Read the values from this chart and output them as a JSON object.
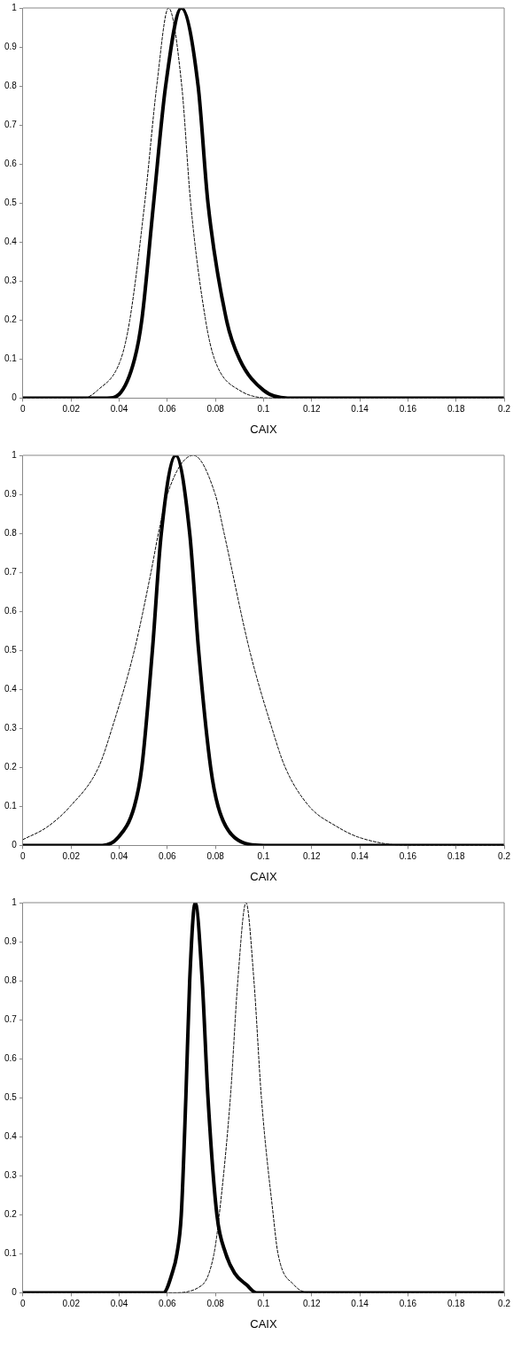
{
  "chart_data": [
    {
      "type": "line",
      "xlabel": "CAIX",
      "xlim": [
        0,
        0.2
      ],
      "xticks": [
        0,
        0.02,
        0.04,
        0.06,
        0.08,
        0.1,
        0.12,
        0.14,
        0.16,
        0.18,
        0.2
      ],
      "ylim": [
        0,
        1
      ],
      "yticks": [
        0,
        0.1,
        0.2,
        0.3,
        0.4,
        0.5,
        0.6,
        0.7,
        0.8,
        0.9,
        1
      ],
      "grid": false,
      "legend": false,
      "marker": "none",
      "series": [
        {
          "color": "#000000",
          "line_style": "solid",
          "x": [
            0,
            0.03,
            0.035,
            0.04,
            0.0464,
            0.0494,
            0.0543,
            0.0593,
            0.0658,
            0.0728,
            0.0769,
            0.0846,
            0.09,
            0.1,
            0.11,
            0.2
          ],
          "values": [
            0,
            0,
            0,
            0.01,
            0.1,
            0.2,
            0.5,
            0.8,
            1,
            0.8,
            0.5,
            0.2,
            0.1,
            0.02,
            0,
            0
          ]
        },
        {
          "color": "#000000",
          "line_style": "dashed",
          "x": [
            0,
            0.025,
            0.031,
            0.0407,
            0.0444,
            0.0506,
            0.0556,
            0.0605,
            0.066,
            0.0697,
            0.0759,
            0.0796,
            0.09,
            0.105,
            0.2
          ],
          "values": [
            0,
            0,
            0.02,
            0.1,
            0.2,
            0.5,
            0.8,
            1,
            0.8,
            0.5,
            0.2,
            0.1,
            0.02,
            0,
            0
          ]
        }
      ]
    },
    {
      "type": "line",
      "xlabel": "CAIX",
      "xlim": [
        0,
        0.2
      ],
      "xticks": [
        0,
        0.02,
        0.04,
        0.06,
        0.08,
        0.1,
        0.12,
        0.14,
        0.16,
        0.18,
        0.2
      ],
      "ylim": [
        0,
        1
      ],
      "yticks": [
        0,
        0.1,
        0.2,
        0.3,
        0.4,
        0.5,
        0.6,
        0.7,
        0.8,
        0.9,
        1
      ],
      "grid": false,
      "legend": false,
      "marker": "none",
      "series": [
        {
          "color": "#000000",
          "line_style": "solid",
          "x": [
            0,
            0.033,
            0.0395,
            0.0463,
            0.0494,
            0.0538,
            0.0575,
            0.0635,
            0.0693,
            0.073,
            0.078,
            0.0811,
            0.088,
            0.1,
            0.2
          ],
          "values": [
            0,
            0,
            0.02,
            0.1,
            0.2,
            0.5,
            0.8,
            1,
            0.8,
            0.5,
            0.2,
            0.1,
            0.02,
            0,
            0
          ]
        },
        {
          "color": "#000000",
          "line_style": "dashed",
          "x": [
            0,
            0.01,
            0.0196,
            0.0314,
            0.037,
            0.0463,
            0.0532,
            0.0563,
            0.06,
            0.0708,
            0.0799,
            0.0836,
            0.0942,
            0.1035,
            0.109,
            0.119,
            0.13,
            0.14,
            0.16,
            0.2
          ],
          "values": [
            0.015,
            0.047,
            0.1,
            0.2,
            0.3,
            0.5,
            0.7,
            0.8,
            0.9,
            1,
            0.9,
            0.8,
            0.5,
            0.3,
            0.2,
            0.1,
            0.05,
            0.02,
            0,
            0
          ]
        }
      ]
    },
    {
      "type": "line",
      "xlabel": "CAIX",
      "xlim": [
        0,
        0.2
      ],
      "xticks": [
        0,
        0.02,
        0.04,
        0.06,
        0.08,
        0.1,
        0.12,
        0.14,
        0.16,
        0.18,
        0.2
      ],
      "ylim": [
        0,
        1
      ],
      "yticks": [
        0,
        0.1,
        0.2,
        0.3,
        0.4,
        0.5,
        0.6,
        0.7,
        0.8,
        0.9,
        1
      ],
      "grid": false,
      "legend": false,
      "marker": "none",
      "series": [
        {
          "color": "#000000",
          "line_style": "solid",
          "x": [
            0,
            0.0584,
            0.062,
            0.064,
            0.0658,
            0.0677,
            0.0693,
            0.0716,
            0.0745,
            0.0769,
            0.0806,
            0.0843,
            0.088,
            0.093,
            0.097,
            0.2
          ],
          "values": [
            0,
            0,
            0.05,
            0.1,
            0.2,
            0.5,
            0.8,
            1,
            0.8,
            0.5,
            0.2,
            0.1,
            0.05,
            0.02,
            0,
            0
          ]
        },
        {
          "color": "#000000",
          "line_style": "dashed",
          "x": [
            0,
            0.062,
            0.0745,
            0.0794,
            0.0816,
            0.0862,
            0.0893,
            0.0927,
            0.096,
            0.0991,
            0.104,
            0.106,
            0.1127,
            0.12,
            0.2
          ],
          "values": [
            0,
            0,
            0.02,
            0.1,
            0.2,
            0.5,
            0.8,
            1,
            0.8,
            0.5,
            0.2,
            0.1,
            0.02,
            0,
            0
          ]
        }
      ]
    }
  ]
}
